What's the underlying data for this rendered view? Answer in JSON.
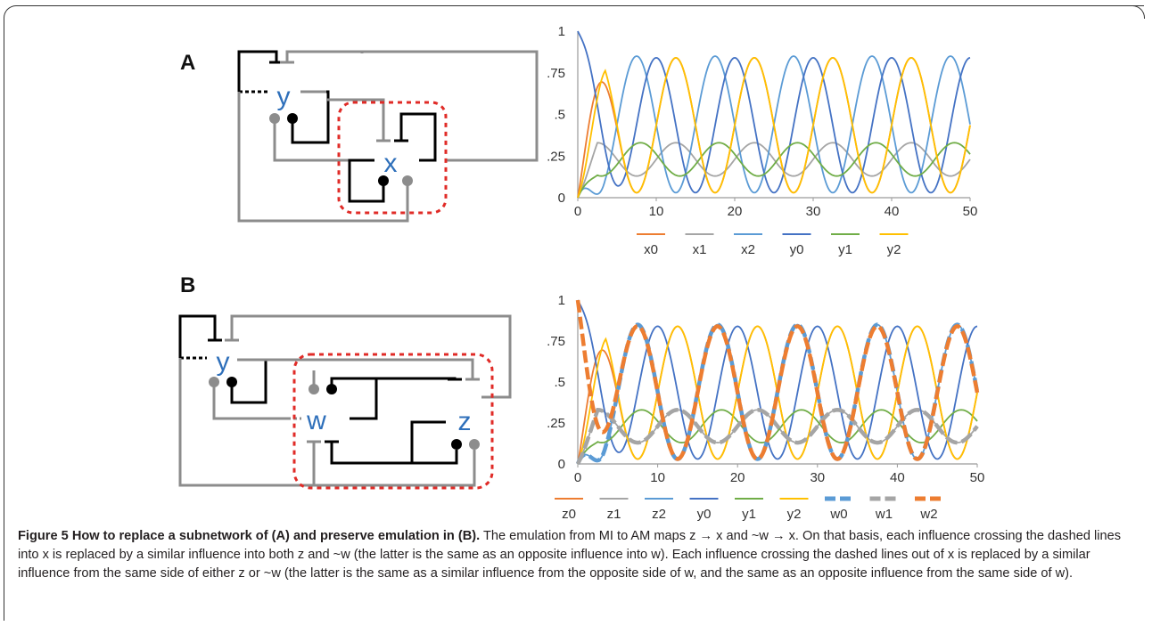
{
  "figure": {
    "panel_a_label": "A",
    "panel_b_label": "B",
    "diagram_a_nodes": [
      "y",
      "x"
    ],
    "diagram_b_nodes": [
      "y",
      "w",
      "z"
    ]
  },
  "caption": {
    "title": "Figure 5 How to replace a subnetwork of (A) and preserve emulation in (B).",
    "body": "The emulation from MI to AM maps z → x and ~w → x. On that basis, each influence crossing the dashed lines into x is replaced by a similar influence into both z and ~w (the latter is the same as an opposite influence into w). Each influence crossing the dashed lines out of x is replaced by a similar influence from the same side of either z or ~w (the latter is the same as a similar influence from the opposite side of w, and the same as an opposite influence from the same side of w)."
  },
  "chart_data": [
    {
      "type": "line",
      "xlim": [
        0,
        50
      ],
      "ylim": [
        0,
        1
      ],
      "x_ticks": [
        0,
        10,
        20,
        30,
        40,
        50
      ],
      "y_ticks": [
        "0",
        ".25",
        ".5",
        ".75",
        "1"
      ],
      "legend": "bottom",
      "period": 10,
      "series": [
        {
          "name": "x0",
          "color": "#ed7d31",
          "dashed": false,
          "kind": "big",
          "peak": 0.84,
          "first_peak": 0,
          "phase": 2.5
        },
        {
          "name": "x1",
          "color": "#a5a5a5",
          "dashed": false,
          "kind": "small",
          "peak": 0.33,
          "phase": 2.5
        },
        {
          "name": "x2",
          "color": "#5b9bd5",
          "dashed": false,
          "kind": "big",
          "peak": 0.85,
          "phase": 7.5
        },
        {
          "name": "y0",
          "color": "#4472c4",
          "dashed": false,
          "kind": "big",
          "peak": 0.84,
          "first_peak": 1.0,
          "phase": 0
        },
        {
          "name": "y1",
          "color": "#70ad47",
          "dashed": false,
          "kind": "small",
          "peak": 0.33,
          "phase": 8.0
        },
        {
          "name": "y2",
          "color": "#ffc000",
          "dashed": false,
          "kind": "big",
          "peak": 0.84,
          "phase": 2.5
        }
      ]
    },
    {
      "type": "line",
      "xlim": [
        0,
        50
      ],
      "ylim": [
        0,
        1
      ],
      "x_ticks": [
        0,
        10,
        20,
        30,
        40,
        50
      ],
      "y_ticks": [
        "0",
        ".25",
        ".5",
        ".75",
        "1"
      ],
      "legend": "bottom",
      "period": 10,
      "series": [
        {
          "name": "z0",
          "color": "#ed7d31",
          "dashed": false,
          "kind": "big",
          "peak": 0.84,
          "first_peak": 0,
          "phase": 2.5
        },
        {
          "name": "z1",
          "color": "#a5a5a5",
          "dashed": false,
          "kind": "small",
          "peak": 0.33,
          "phase": 2.5
        },
        {
          "name": "z2",
          "color": "#5b9bd5",
          "dashed": false,
          "kind": "big",
          "peak": 0.85,
          "phase": 7.5
        },
        {
          "name": "y0",
          "color": "#4472c4",
          "dashed": false,
          "kind": "big",
          "peak": 0.84,
          "first_peak": 1.0,
          "phase": 0
        },
        {
          "name": "y1",
          "color": "#70ad47",
          "dashed": false,
          "kind": "small",
          "peak": 0.33,
          "phase": 8.0
        },
        {
          "name": "y2",
          "color": "#ffc000",
          "dashed": false,
          "kind": "big",
          "peak": 0.84,
          "phase": 2.5
        },
        {
          "name": "w0",
          "color": "#5b9bd5",
          "dashed": true,
          "kind": "big",
          "peak": 0.85,
          "phase": 7.5
        },
        {
          "name": "w1",
          "color": "#a5a5a5",
          "dashed": true,
          "kind": "small",
          "peak": 0.33,
          "phase": 2.5
        },
        {
          "name": "w2",
          "color": "#ed7d31",
          "dashed": true,
          "kind": "big",
          "peak": 0.84,
          "first_peak": 1.0,
          "phase": 7.5
        }
      ]
    }
  ]
}
